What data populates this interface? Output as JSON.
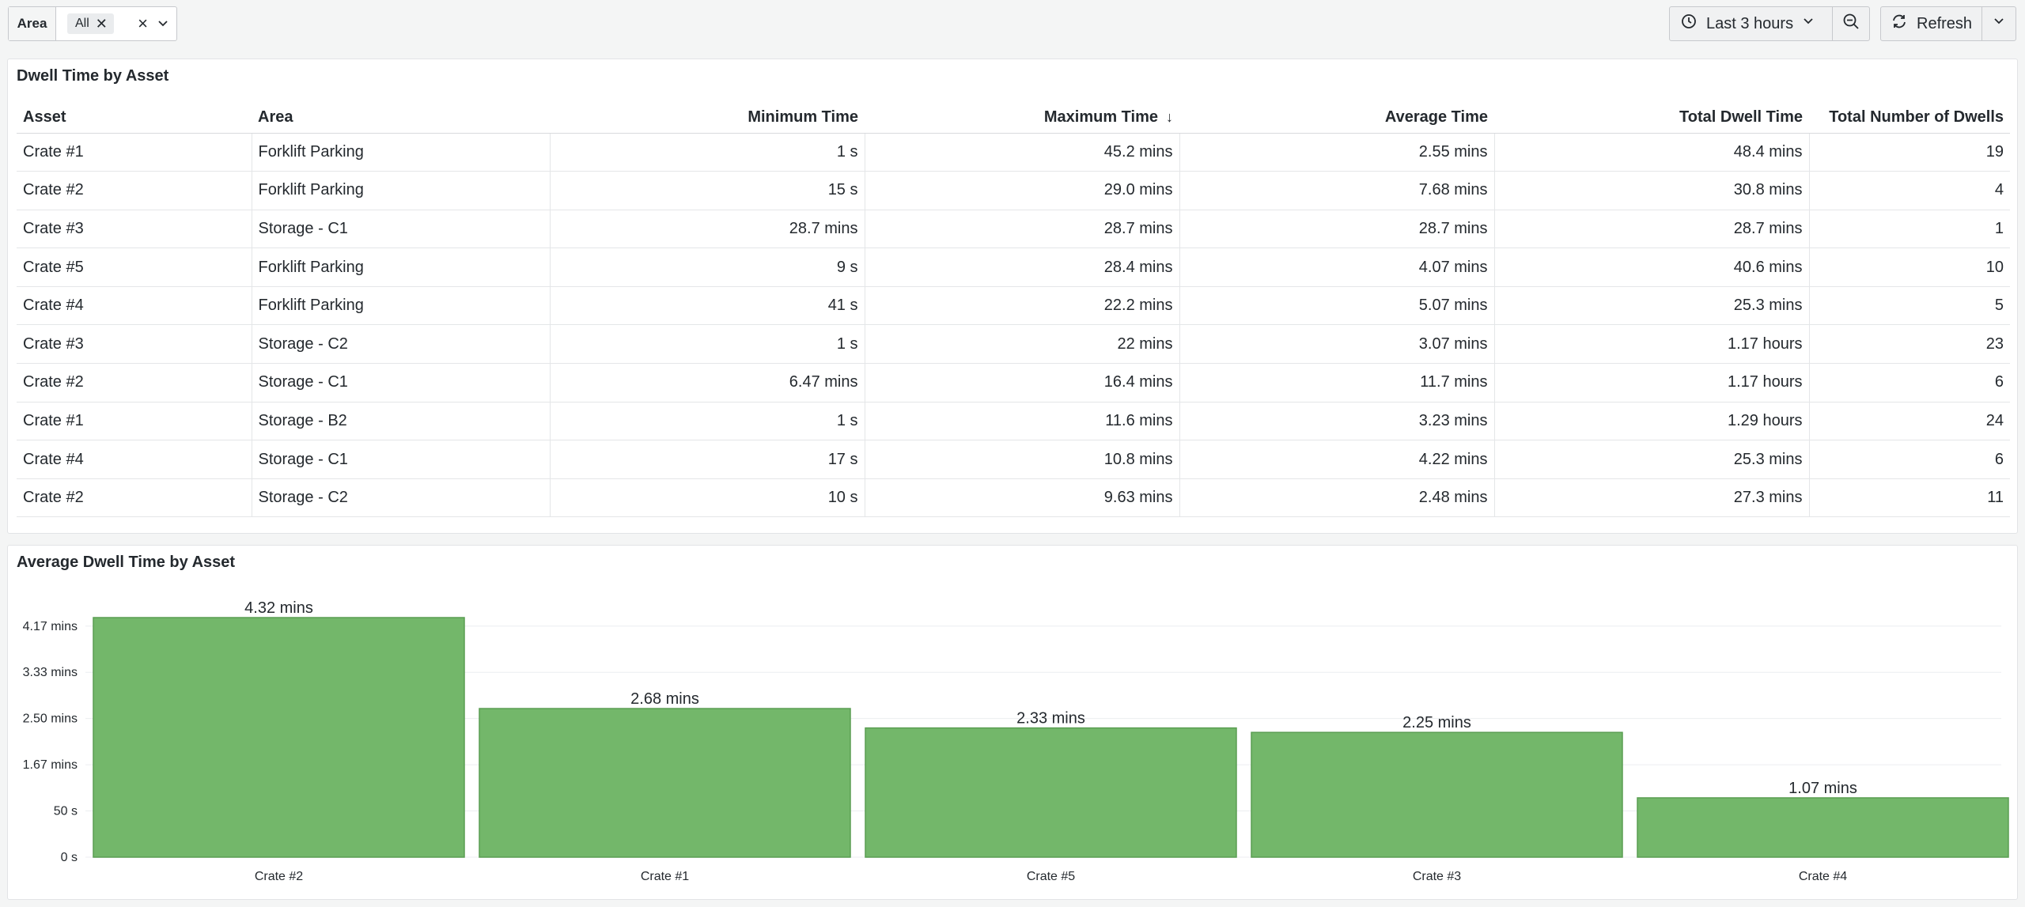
{
  "variables": {
    "area_label": "Area",
    "area_value": "All"
  },
  "toolbar": {
    "time_range": "Last 3 hours",
    "refresh_label": "Refresh"
  },
  "table_panel": {
    "title": "Dwell Time by Asset",
    "columns": [
      "Asset",
      "Area",
      "Minimum Time",
      "Maximum Time",
      "Average Time",
      "Total Dwell Time",
      "Total Number of Dwells"
    ],
    "sorted_column": "Maximum Time",
    "rows": [
      [
        "Crate #1",
        "Forklift Parking",
        "1 s",
        "45.2 mins",
        "2.55 mins",
        "48.4 mins",
        "19"
      ],
      [
        "Crate #2",
        "Forklift Parking",
        "15 s",
        "29.0 mins",
        "7.68 mins",
        "30.8 mins",
        "4"
      ],
      [
        "Crate #3",
        "Storage - C1",
        "28.7 mins",
        "28.7 mins",
        "28.7 mins",
        "28.7 mins",
        "1"
      ],
      [
        "Crate #5",
        "Forklift Parking",
        "9 s",
        "28.4 mins",
        "4.07 mins",
        "40.6 mins",
        "10"
      ],
      [
        "Crate #4",
        "Forklift Parking",
        "41 s",
        "22.2 mins",
        "5.07 mins",
        "25.3 mins",
        "5"
      ],
      [
        "Crate #3",
        "Storage - C2",
        "1 s",
        "22 mins",
        "3.07 mins",
        "1.17 hours",
        "23"
      ],
      [
        "Crate #2",
        "Storage - C1",
        "6.47 mins",
        "16.4 mins",
        "11.7 mins",
        "1.17 hours",
        "6"
      ],
      [
        "Crate #1",
        "Storage - B2",
        "1 s",
        "11.6 mins",
        "3.23 mins",
        "1.29 hours",
        "24"
      ],
      [
        "Crate #4",
        "Storage - C1",
        "17 s",
        "10.8 mins",
        "4.22 mins",
        "25.3 mins",
        "6"
      ],
      [
        "Crate #2",
        "Storage - C2",
        "10 s",
        "9.63 mins",
        "2.48 mins",
        "27.3 mins",
        "11"
      ]
    ]
  },
  "chart_panel": {
    "title": "Average Dwell Time by Asset"
  },
  "chart_data": {
    "type": "bar",
    "title": "Average Dwell Time by Asset",
    "categories": [
      "Crate #2",
      "Crate #1",
      "Crate #5",
      "Crate #3",
      "Crate #4"
    ],
    "values_seconds": [
      259.2,
      160.8,
      139.8,
      135,
      64.2
    ],
    "value_labels": [
      "4.32 mins",
      "2.68 mins",
      "2.33 mins",
      "2.25 mins",
      "1.07 mins"
    ],
    "y_ticks_seconds": [
      0,
      50,
      100,
      150,
      200,
      250
    ],
    "y_tick_labels": [
      "0 s",
      "50 s",
      "1.67 mins",
      "2.50 mins",
      "3.33 mins",
      "4.17 mins"
    ],
    "ylim_seconds": [
      0,
      259.2
    ],
    "grid": true,
    "bar_color": "#73b76a",
    "bar_border_color": "#5a9e52"
  }
}
